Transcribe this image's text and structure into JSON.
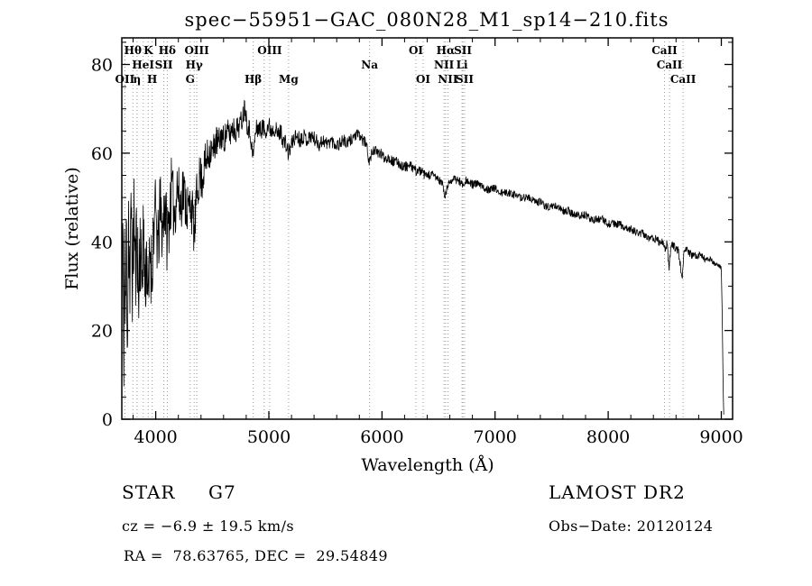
{
  "title": "spec−55951−GAC_080N28_M1_sp14−210.fits",
  "chart_data": {
    "type": "line",
    "title": "spec−55951−GAC_080N28_M1_sp14−210.fits",
    "xlabel": "Wavelength (Å)",
    "ylabel": "Flux (relative)",
    "xlim": [
      3700,
      9100
    ],
    "ylim": [
      0,
      86
    ],
    "xticks": [
      4000,
      5000,
      6000,
      7000,
      8000,
      9000
    ],
    "x_minor_step": 200,
    "yticks": [
      0,
      20,
      40,
      60,
      80
    ],
    "y_minor_step": 5,
    "grid": false,
    "legend": "none",
    "colors": {
      "trace": "#000000",
      "line_marker": "#9a9a9a",
      "text": "#000000"
    },
    "noise_seed": 11,
    "noise_amplitude": [
      [
        3700,
        14
      ],
      [
        3800,
        13
      ],
      [
        3900,
        11
      ],
      [
        4000,
        9
      ],
      [
        4150,
        7.5
      ],
      [
        4300,
        6
      ],
      [
        4450,
        4.5
      ],
      [
        4600,
        3.2
      ],
      [
        4800,
        2.6
      ],
      [
        5000,
        2.2
      ],
      [
        5300,
        1.8
      ],
      [
        5600,
        1.5
      ],
      [
        5900,
        1.3
      ],
      [
        6300,
        1.1
      ],
      [
        6700,
        1.0
      ],
      [
        7200,
        0.9
      ],
      [
        8000,
        0.9
      ],
      [
        8600,
        1.0
      ],
      [
        9022,
        0.6
      ]
    ],
    "series": [
      {
        "name": "spectrum",
        "points": [
          [
            3700,
            22
          ],
          [
            3708,
            46
          ],
          [
            3716,
            12
          ],
          [
            3724,
            40
          ],
          [
            3732,
            16
          ],
          [
            3740,
            44
          ],
          [
            3750,
            20
          ],
          [
            3760,
            47
          ],
          [
            3772,
            26
          ],
          [
            3784,
            50
          ],
          [
            3796,
            28
          ],
          [
            3808,
            48
          ],
          [
            3820,
            32
          ],
          [
            3834,
            44
          ],
          [
            3848,
            26
          ],
          [
            3862,
            42
          ],
          [
            3876,
            30
          ],
          [
            3890,
            44
          ],
          [
            3905,
            30
          ],
          [
            3920,
            38
          ],
          [
            3935,
            24
          ],
          [
            3950,
            40
          ],
          [
            3965,
            32
          ],
          [
            3980,
            44
          ],
          [
            4000,
            46
          ],
          [
            4020,
            38
          ],
          [
            4040,
            48
          ],
          [
            4060,
            42
          ],
          [
            4080,
            50
          ],
          [
            4100,
            41
          ],
          [
            4120,
            46
          ],
          [
            4140,
            52
          ],
          [
            4165,
            46
          ],
          [
            4190,
            53
          ],
          [
            4215,
            48
          ],
          [
            4240,
            52
          ],
          [
            4265,
            49
          ],
          [
            4290,
            47
          ],
          [
            4310,
            49
          ],
          [
            4330,
            45
          ],
          [
            4342,
            41
          ],
          [
            4355,
            48
          ],
          [
            4370,
            52
          ],
          [
            4390,
            55
          ],
          [
            4410,
            54
          ],
          [
            4430,
            57
          ],
          [
            4455,
            59
          ],
          [
            4480,
            61
          ],
          [
            4505,
            60
          ],
          [
            4530,
            63
          ],
          [
            4555,
            62
          ],
          [
            4580,
            64
          ],
          [
            4605,
            63
          ],
          [
            4630,
            65
          ],
          [
            4655,
            64
          ],
          [
            4680,
            66
          ],
          [
            4705,
            65
          ],
          [
            4730,
            66
          ],
          [
            4755,
            67
          ],
          [
            4775,
            69
          ],
          [
            4790,
            71
          ],
          [
            4805,
            67
          ],
          [
            4820,
            66
          ],
          [
            4840,
            64
          ],
          [
            4857,
            59
          ],
          [
            4868,
            61
          ],
          [
            4885,
            65
          ],
          [
            4905,
            66
          ],
          [
            4925,
            65
          ],
          [
            4945,
            66
          ],
          [
            4965,
            65
          ],
          [
            4985,
            66
          ],
          [
            5005,
            66
          ],
          [
            5025,
            65
          ],
          [
            5045,
            66
          ],
          [
            5065,
            65
          ],
          [
            5085,
            64
          ],
          [
            5105,
            65
          ],
          [
            5125,
            63
          ],
          [
            5150,
            62
          ],
          [
            5172,
            60
          ],
          [
            5190,
            61
          ],
          [
            5215,
            63
          ],
          [
            5245,
            64
          ],
          [
            5275,
            63
          ],
          [
            5305,
            64
          ],
          [
            5340,
            63
          ],
          [
            5375,
            64
          ],
          [
            5410,
            63
          ],
          [
            5445,
            62
          ],
          [
            5480,
            63
          ],
          [
            5515,
            62
          ],
          [
            5550,
            63
          ],
          [
            5585,
            62
          ],
          [
            5620,
            62
          ],
          [
            5655,
            63
          ],
          [
            5690,
            62
          ],
          [
            5725,
            63
          ],
          [
            5760,
            64
          ],
          [
            5795,
            64
          ],
          [
            5830,
            63
          ],
          [
            5862,
            62
          ],
          [
            5888,
            58
          ],
          [
            5900,
            59
          ],
          [
            5925,
            61
          ],
          [
            5955,
            60
          ],
          [
            5985,
            60
          ],
          [
            6020,
            59
          ],
          [
            6060,
            59
          ],
          [
            6100,
            58
          ],
          [
            6140,
            58
          ],
          [
            6180,
            57
          ],
          [
            6220,
            57
          ],
          [
            6260,
            57
          ],
          [
            6300,
            56
          ],
          [
            6340,
            56
          ],
          [
            6380,
            55
          ],
          [
            6420,
            55
          ],
          [
            6460,
            55
          ],
          [
            6500,
            54
          ],
          [
            6535,
            53
          ],
          [
            6558,
            50
          ],
          [
            6575,
            52
          ],
          [
            6605,
            54
          ],
          [
            6640,
            54
          ],
          [
            6675,
            54
          ],
          [
            6710,
            53
          ],
          [
            6745,
            54
          ],
          [
            6780,
            53
          ],
          [
            6820,
            53
          ],
          [
            6860,
            53
          ],
          [
            6900,
            52
          ],
          [
            6950,
            52
          ],
          [
            7000,
            52
          ],
          [
            7050,
            51
          ],
          [
            7100,
            51
          ],
          [
            7150,
            51
          ],
          [
            7200,
            50
          ],
          [
            7250,
            50
          ],
          [
            7300,
            50
          ],
          [
            7350,
            49
          ],
          [
            7400,
            49
          ],
          [
            7450,
            48
          ],
          [
            7500,
            48
          ],
          [
            7550,
            48
          ],
          [
            7600,
            47
          ],
          [
            7650,
            47
          ],
          [
            7700,
            46
          ],
          [
            7750,
            46
          ],
          [
            7800,
            46
          ],
          [
            7850,
            45
          ],
          [
            7900,
            45
          ],
          [
            7950,
            45
          ],
          [
            8000,
            44
          ],
          [
            8050,
            44
          ],
          [
            8100,
            44
          ],
          [
            8150,
            43
          ],
          [
            8200,
            43
          ],
          [
            8250,
            42
          ],
          [
            8300,
            42
          ],
          [
            8350,
            41
          ],
          [
            8400,
            41
          ],
          [
            8450,
            40
          ],
          [
            8490,
            40
          ],
          [
            8505,
            38
          ],
          [
            8520,
            40
          ],
          [
            8538,
            33
          ],
          [
            8552,
            39
          ],
          [
            8580,
            39
          ],
          [
            8620,
            38
          ],
          [
            8655,
            32
          ],
          [
            8672,
            38
          ],
          [
            8700,
            38
          ],
          [
            8740,
            37
          ],
          [
            8780,
            37
          ],
          [
            8820,
            37
          ],
          [
            8860,
            36
          ],
          [
            8900,
            36
          ],
          [
            8940,
            35
          ],
          [
            8975,
            35
          ],
          [
            9000,
            34
          ],
          [
            9008,
            24
          ],
          [
            9016,
            8
          ],
          [
            9022,
            1
          ]
        ]
      }
    ],
    "spectral_lines": [
      {
        "wavelength": 3727,
        "label": "OII",
        "row": 3
      },
      {
        "wavelength": 3798,
        "label": "Hθ",
        "row": 1
      },
      {
        "wavelength": 3835,
        "label": "η",
        "row": 3
      },
      {
        "wavelength": 3889,
        "label": "HeI",
        "row": 2
      },
      {
        "wavelength": 3934,
        "label": "K",
        "row": 1
      },
      {
        "wavelength": 3969,
        "label": "H",
        "row": 3
      },
      {
        "wavelength": 4072,
        "label": "SII",
        "row": 2
      },
      {
        "wavelength": 4102,
        "label": "Hδ",
        "row": 1
      },
      {
        "wavelength": 4305,
        "label": "G",
        "row": 3
      },
      {
        "wavelength": 4340,
        "label": "Hγ",
        "row": 2
      },
      {
        "wavelength": 4363,
        "label": "OIII",
        "row": 1
      },
      {
        "wavelength": 4861,
        "label": "Hβ",
        "row": 3
      },
      {
        "wavelength": 4959,
        "label": "",
        "row": 2
      },
      {
        "wavelength": 5007,
        "label": "OIII",
        "row": 1
      },
      {
        "wavelength": 5175,
        "label": "Mg",
        "row": 3
      },
      {
        "wavelength": 5890,
        "label": "Na",
        "row": 2
      },
      {
        "wavelength": 6300,
        "label": "OI",
        "row": 1
      },
      {
        "wavelength": 6364,
        "label": "OI",
        "row": 3
      },
      {
        "wavelength": 6548,
        "label": "NII",
        "row": 2
      },
      {
        "wavelength": 6563,
        "label": "Hα",
        "row": 1
      },
      {
        "wavelength": 6583,
        "label": "NII",
        "row": 3
      },
      {
        "wavelength": 6708,
        "label": "Li",
        "row": 2
      },
      {
        "wavelength": 6716,
        "label": "SII",
        "row": 1
      },
      {
        "wavelength": 6731,
        "label": "SII",
        "row": 3
      },
      {
        "wavelength": 8498,
        "label": "CaII",
        "row": 1
      },
      {
        "wavelength": 8542,
        "label": "CaII",
        "row": 2
      },
      {
        "wavelength": 8662,
        "label": "CaII",
        "row": 3
      }
    ]
  },
  "footer": {
    "object_type": "STAR",
    "subclass": "G7",
    "cz": "cz = −6.9 ± 19.5 km/s",
    "radec": "RA =  78.63765, DEC =  29.54849",
    "survey": "LAMOST DR2",
    "obs_date": "Obs−Date: 20120124"
  }
}
